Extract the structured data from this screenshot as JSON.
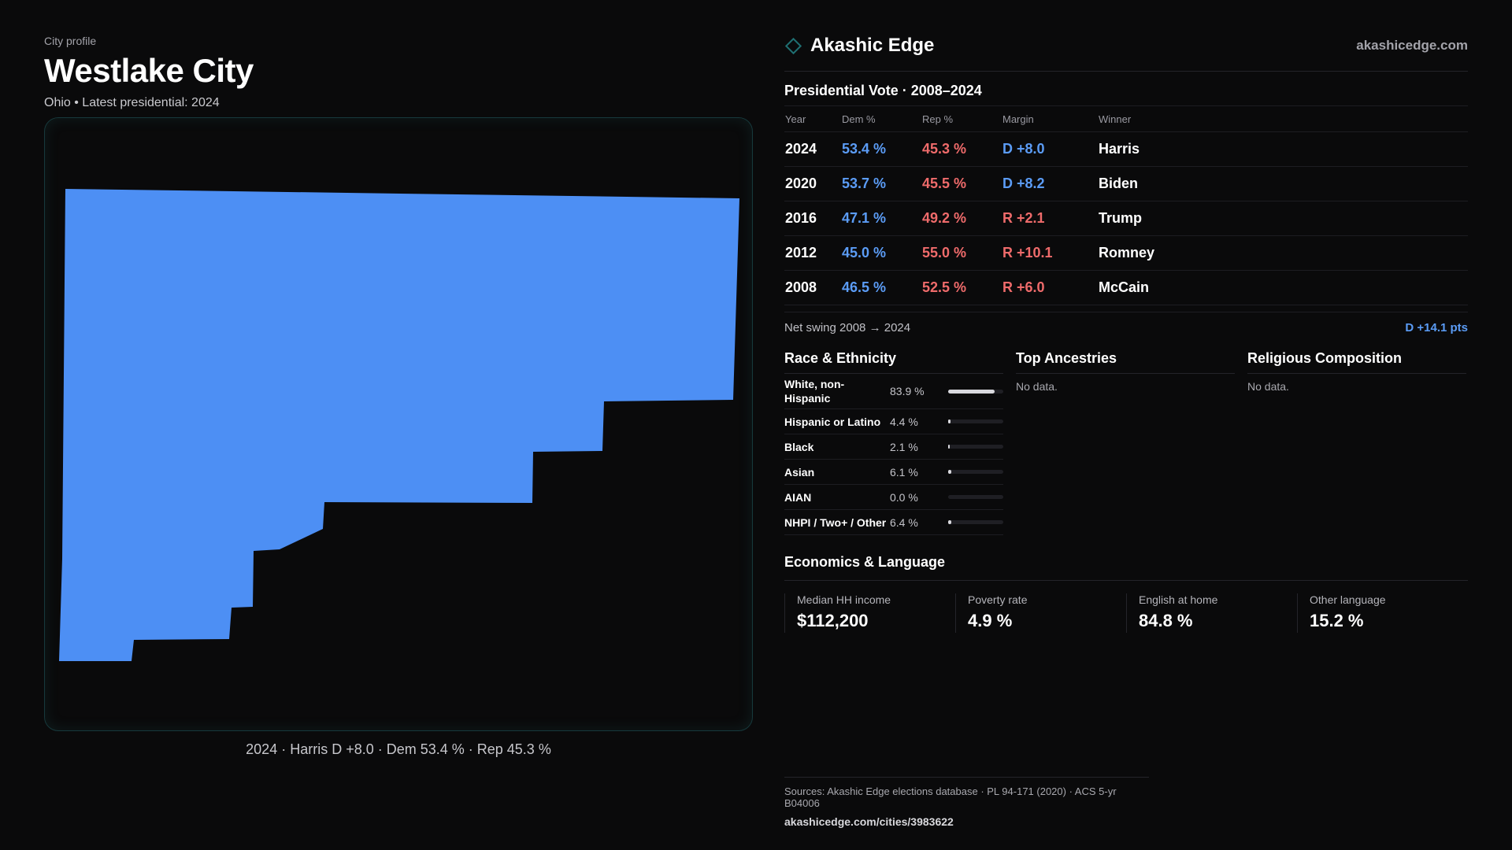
{
  "header": {
    "kicker": "City profile",
    "title": "Westlake City",
    "subtitle": "Ohio • Latest presidential: 2024"
  },
  "map": {
    "fill_color": "#4d8ff4",
    "caption": "2024 · Harris D +8.0 · Dem 53.4 % · Rep 45.3 %"
  },
  "brand": {
    "name": "Akashic Edge",
    "url": "akashicedge.com"
  },
  "vote": {
    "title": "Presidential Vote · 2008–2024",
    "headers": {
      "year": "Year",
      "dem": "Dem %",
      "rep": "Rep %",
      "margin": "Margin",
      "winner": "Winner"
    },
    "rows": [
      {
        "year": "2024",
        "dem": "53.4 %",
        "rep": "45.3 %",
        "margin": "D +8.0",
        "winner": "Harris"
      },
      {
        "year": "2020",
        "dem": "53.7 %",
        "rep": "45.5 %",
        "margin": "D +8.2",
        "winner": "Biden"
      },
      {
        "year": "2016",
        "dem": "47.1 %",
        "rep": "49.2 %",
        "margin": "R +2.1",
        "winner": "Trump"
      },
      {
        "year": "2012",
        "dem": "45.0 %",
        "rep": "55.0 %",
        "margin": "R +10.1",
        "winner": "Romney"
      },
      {
        "year": "2008",
        "dem": "46.5 %",
        "rep": "52.5 %",
        "margin": "R +6.0",
        "winner": "McCain"
      }
    ],
    "swing_label": "Net swing 2008 → 2024",
    "swing_value": "D +14.1 pts"
  },
  "race": {
    "title": "Race & Ethnicity",
    "rows": [
      {
        "label": "White, non-Hispanic",
        "value": "83.9 %",
        "pct": 83.9
      },
      {
        "label": "Hispanic or Latino",
        "value": "4.4 %",
        "pct": 4.4
      },
      {
        "label": "Black",
        "value": "2.1 %",
        "pct": 2.1
      },
      {
        "label": "Asian",
        "value": "6.1 %",
        "pct": 6.1
      },
      {
        "label": "AIAN",
        "value": "0.0 %",
        "pct": 0.0
      },
      {
        "label": "NHPI / Two+ / Other",
        "value": "6.4 %",
        "pct": 6.4
      }
    ]
  },
  "ancestries": {
    "title": "Top Ancestries",
    "empty": "No data."
  },
  "religion": {
    "title": "Religious Composition",
    "empty": "No data."
  },
  "economics": {
    "title": "Economics & Language",
    "cards": [
      {
        "label": "Median HH income",
        "value": "$112,200"
      },
      {
        "label": "Poverty rate",
        "value": "4.9 %"
      },
      {
        "label": "English at home",
        "value": "84.8 %"
      },
      {
        "label": "Other language",
        "value": "15.2 %"
      }
    ]
  },
  "sources": {
    "line": "Sources: Akashic Edge elections database · PL 94-171 (2020) · ACS 5-yr B04006",
    "url": "akashicedge.com/cities/3983622"
  },
  "colors": {
    "dem": "#5b9cf6",
    "rep": "#ef6b6b",
    "background": "#0a0a0b",
    "accent": "#1f6f72"
  }
}
